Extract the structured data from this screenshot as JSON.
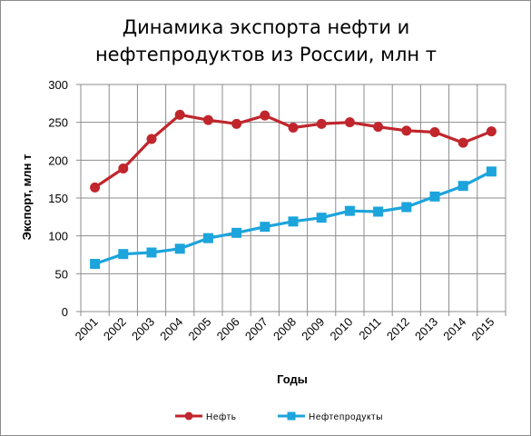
{
  "chart_data": {
    "type": "line",
    "title_lines": [
      "Динамика экспорта нефти и",
      "нефтепродуктов из России, млн т"
    ],
    "xlabel": "Годы",
    "ylabel": "Экспорт, млн т",
    "categories": [
      "2001",
      "2002",
      "2003",
      "2004",
      "2005",
      "2006",
      "2007",
      "2008",
      "2009",
      "2010",
      "2011",
      "2012",
      "2013",
      "2014",
      "2015"
    ],
    "ylim": [
      0,
      300
    ],
    "yticks": [
      "0",
      "50",
      "100",
      "150",
      "200",
      "250",
      "300"
    ],
    "grid": true,
    "legend_position": "bottom",
    "series": [
      {
        "name": "Нефть",
        "color": "#c0262c",
        "marker": "circle",
        "values": [
          164,
          189,
          228,
          260,
          253,
          248,
          259,
          243,
          248,
          250,
          244,
          239,
          237,
          223,
          238
        ]
      },
      {
        "name": "Нефтепродукты",
        "color": "#1ca4dc",
        "marker": "square",
        "values": [
          63,
          76,
          78,
          83,
          97,
          104,
          112,
          119,
          124,
          133,
          132,
          138,
          152,
          166,
          185
        ]
      }
    ]
  }
}
